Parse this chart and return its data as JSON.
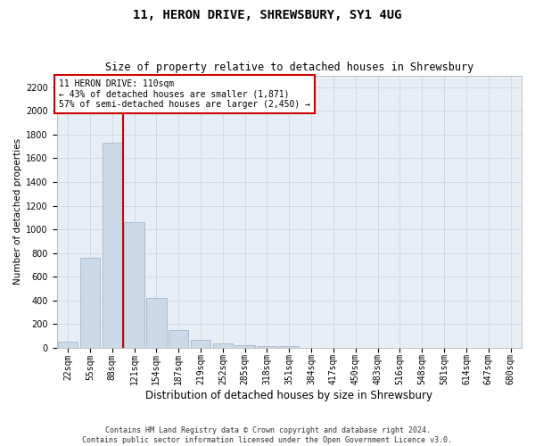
{
  "title": "11, HERON DRIVE, SHREWSBURY, SY1 4UG",
  "subtitle": "Size of property relative to detached houses in Shrewsbury",
  "xlabel": "Distribution of detached houses by size in Shrewsbury",
  "ylabel": "Number of detached properties",
  "footer_line1": "Contains HM Land Registry data © Crown copyright and database right 2024.",
  "footer_line2": "Contains public sector information licensed under the Open Government Licence v3.0.",
  "bin_labels": [
    "22sqm",
    "55sqm",
    "88sqm",
    "121sqm",
    "154sqm",
    "187sqm",
    "219sqm",
    "252sqm",
    "285sqm",
    "318sqm",
    "351sqm",
    "384sqm",
    "417sqm",
    "450sqm",
    "483sqm",
    "516sqm",
    "548sqm",
    "581sqm",
    "614sqm",
    "647sqm",
    "680sqm"
  ],
  "bar_values": [
    50,
    760,
    1730,
    1060,
    420,
    150,
    70,
    40,
    25,
    18,
    12,
    0,
    0,
    0,
    0,
    0,
    0,
    0,
    0,
    0,
    0
  ],
  "bar_color": "#ccd9e8",
  "bar_edge_color": "#99aec8",
  "vline_color": "#cc0000",
  "vline_x_idx": 2.5,
  "ylim": [
    0,
    2300
  ],
  "yticks": [
    0,
    200,
    400,
    600,
    800,
    1000,
    1200,
    1400,
    1600,
    1800,
    2000,
    2200
  ],
  "annotation_text": "11 HERON DRIVE: 110sqm\n← 43% of detached houses are smaller (1,871)\n57% of semi-detached houses are larger (2,450) →",
  "annotation_box_facecolor": "white",
  "annotation_box_edgecolor": "#cc0000",
  "grid_color": "#ccd5e0",
  "bg_color": "#e8eef5",
  "title_fontsize": 10,
  "subtitle_fontsize": 8.5,
  "xlabel_fontsize": 8.5,
  "ylabel_fontsize": 7.5,
  "tick_fontsize": 7,
  "annotation_fontsize": 7,
  "footer_fontsize": 6
}
